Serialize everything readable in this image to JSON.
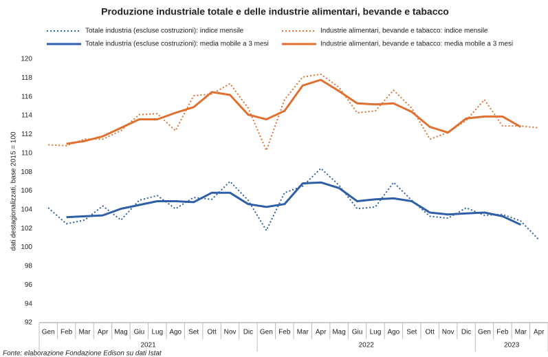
{
  "chart_data": {
    "type": "line",
    "title": "Produzione industriale totale e delle industrie alimentari, bevande e tabacco",
    "y_label": "dati destagionalizzati, base 2015 = 100",
    "source": "Fonte: elaborazione Fondazione Edison su dati Istat",
    "categories": [
      "Gen",
      "Feb",
      "Mar",
      "Apr",
      "Mag",
      "Giu",
      "Lug",
      "Ago",
      "Set",
      "Ott",
      "Nov",
      "Dic",
      "Gen",
      "Feb",
      "Mar",
      "Apr",
      "Mag",
      "Giu",
      "Lug",
      "Ago",
      "Set",
      "Ott",
      "Nov",
      "Dic",
      "Gen",
      "Feb",
      "Mar",
      "Apr"
    ],
    "years": [
      "2021",
      "2022",
      "2023"
    ],
    "ylim": [
      92,
      120
    ],
    "yticks": [
      92,
      94,
      96,
      98,
      100,
      102,
      104,
      106,
      108,
      110,
      112,
      114,
      116,
      118,
      120
    ],
    "grid": false,
    "series": [
      {
        "name": "Totale industria (escluse costruzioni): indice mensile",
        "color": "#2e5ea8",
        "style": "dotted",
        "values": [
          104.2,
          102.5,
          102.9,
          104.4,
          102.9,
          105.0,
          105.5,
          104.1,
          105.3,
          105.1,
          107.0,
          105.0,
          101.8,
          105.8,
          106.5,
          108.4,
          106.6,
          104.1,
          104.3,
          106.9,
          105.0,
          103.3,
          103.1,
          104.2,
          103.4,
          103.5,
          102.8,
          100.8
        ]
      },
      {
        "name": "Industrie alimentari, bevande e tabacco: indice mensile",
        "color": "#e07030",
        "style": "dotted",
        "values": [
          110.9,
          110.8,
          111.5,
          111.5,
          112.4,
          114.1,
          114.2,
          112.4,
          116.1,
          116.3,
          117.4,
          114.8,
          110.3,
          115.7,
          118.1,
          118.4,
          117.0,
          114.3,
          114.5,
          116.7,
          114.8,
          111.5,
          112.2,
          113.5,
          115.7,
          112.9,
          112.9,
          112.7
        ]
      },
      {
        "name": "Totale industria (escluse costruzioni): media mobile a 3 mesi",
        "color": "#2e5ea8",
        "style": "solid",
        "values": [
          null,
          103.2,
          103.3,
          103.4,
          104.1,
          104.5,
          104.9,
          104.9,
          104.8,
          105.8,
          105.8,
          104.6,
          104.3,
          104.6,
          106.8,
          106.9,
          106.3,
          104.9,
          105.1,
          105.2,
          104.9,
          103.7,
          103.5,
          103.6,
          103.7,
          103.3,
          102.4,
          null
        ]
      },
      {
        "name": "Industrie alimentari, bevande e tabacco: media mobile a 3 mesi",
        "color": "#e07030",
        "style": "solid",
        "values": [
          null,
          111.0,
          111.3,
          111.8,
          112.7,
          113.6,
          113.6,
          114.3,
          114.9,
          116.5,
          116.2,
          114.1,
          113.6,
          114.5,
          117.2,
          117.8,
          116.6,
          115.3,
          115.2,
          115.3,
          114.4,
          112.8,
          112.2,
          113.7,
          113.9,
          113.9,
          112.8,
          null
        ]
      }
    ]
  }
}
